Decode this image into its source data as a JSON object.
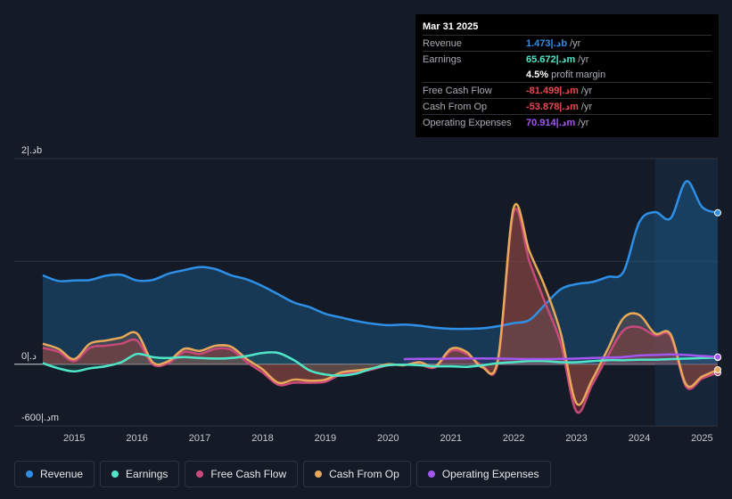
{
  "tooltip": {
    "date": "Mar 31 2025",
    "rows": [
      {
        "label": "Revenue",
        "value": "1.473|.دb",
        "unit": "/yr",
        "color": "#2e8fe6"
      },
      {
        "label": "Earnings",
        "value": "65.672|.دm",
        "unit": "/yr",
        "color": "#4fe6c7"
      },
      {
        "label": "",
        "value": "4.5%",
        "unit": "profit margin",
        "color": "#ffffff"
      },
      {
        "label": "Free Cash Flow",
        "value": "-81.499|.دm",
        "unit": "/yr",
        "color": "#e8484f"
      },
      {
        "label": "Cash From Op",
        "value": "-53.878|.دm",
        "unit": "/yr",
        "color": "#e8484f"
      },
      {
        "label": "Operating Expenses",
        "value": "70.914|.دm",
        "unit": "/yr",
        "color": "#a357f0"
      }
    ]
  },
  "legend": [
    {
      "label": "Revenue",
      "color": "#2e8fe6"
    },
    {
      "label": "Earnings",
      "color": "#4fe6c7"
    },
    {
      "label": "Free Cash Flow",
      "color": "#c94a7a"
    },
    {
      "label": "Cash From Op",
      "color": "#e8a85a"
    },
    {
      "label": "Operating Expenses",
      "color": "#a357f0"
    }
  ],
  "chart_data": {
    "type": "area",
    "ylim": [
      -600,
      2000
    ],
    "y_tick_labels": [
      {
        "value": 2000,
        "label": "2|.دb"
      },
      {
        "value": 0,
        "label": "0|.د"
      },
      {
        "value": -600,
        "label": "-600|.دm"
      }
    ],
    "x_ticks": [
      2015,
      2016,
      2017,
      2018,
      2019,
      2020,
      2021,
      2022,
      2023,
      2024,
      2025
    ],
    "xlim": [
      2014.5,
      2025.25
    ],
    "highlight_start": 2024.25,
    "series": [
      {
        "name": "Revenue",
        "color": "#2e8fe6",
        "x": [
          2014.5,
          2014.75,
          2015.0,
          2015.25,
          2015.5,
          2015.75,
          2016.0,
          2016.25,
          2016.5,
          2016.75,
          2017.0,
          2017.25,
          2017.5,
          2017.75,
          2018.0,
          2018.25,
          2018.5,
          2018.75,
          2019.0,
          2019.25,
          2019.5,
          2019.75,
          2020.0,
          2020.25,
          2020.5,
          2020.75,
          2021.0,
          2021.25,
          2021.5,
          2021.75,
          2022.0,
          2022.25,
          2022.5,
          2022.75,
          2023.0,
          2023.25,
          2023.5,
          2023.75,
          2024.0,
          2024.25,
          2024.5,
          2024.75,
          2025.0,
          2025.25
        ],
        "values": [
          865,
          810,
          815,
          820,
          860,
          870,
          815,
          820,
          880,
          915,
          945,
          925,
          865,
          825,
          760,
          680,
          600,
          555,
          490,
          455,
          420,
          395,
          380,
          385,
          375,
          355,
          345,
          345,
          350,
          370,
          400,
          430,
          580,
          730,
          780,
          800,
          850,
          900,
          1380,
          1480,
          1420,
          1780,
          1530,
          1473
        ]
      },
      {
        "name": "Earnings",
        "color": "#4fe6c7",
        "x": [
          2014.5,
          2014.75,
          2015.0,
          2015.25,
          2015.5,
          2015.75,
          2016.0,
          2016.25,
          2016.5,
          2016.75,
          2017.0,
          2017.25,
          2017.5,
          2017.75,
          2018.0,
          2018.25,
          2018.5,
          2018.75,
          2019.0,
          2019.25,
          2019.5,
          2019.75,
          2020.0,
          2020.25,
          2020.5,
          2020.75,
          2021.0,
          2021.25,
          2021.5,
          2021.75,
          2022.0,
          2022.25,
          2022.5,
          2022.75,
          2023.0,
          2023.25,
          2023.5,
          2023.75,
          2024.0,
          2024.25,
          2024.5,
          2024.75,
          2025.0,
          2025.25
        ],
        "values": [
          10,
          -40,
          -70,
          -40,
          -20,
          20,
          100,
          70,
          60,
          70,
          60,
          55,
          60,
          80,
          110,
          110,
          40,
          -60,
          -100,
          -110,
          -90,
          -40,
          -10,
          -5,
          -10,
          -20,
          -20,
          -25,
          -10,
          10,
          20,
          30,
          30,
          20,
          20,
          30,
          40,
          40,
          45,
          45,
          50,
          55,
          60,
          65.672
        ]
      },
      {
        "name": "Free Cash Flow",
        "color": "#c94a7a",
        "x": [
          2014.5,
          2014.75,
          2015.0,
          2015.25,
          2015.5,
          2015.75,
          2016.0,
          2016.25,
          2016.5,
          2016.75,
          2017.0,
          2017.25,
          2017.5,
          2017.75,
          2018.0,
          2018.25,
          2018.5,
          2018.75,
          2019.0,
          2019.25,
          2019.5,
          2019.75,
          2020.0,
          2020.25,
          2020.5,
          2020.75,
          2021.0,
          2021.25,
          2021.5,
          2021.75,
          2022.0,
          2022.25,
          2022.5,
          2022.75,
          2023.0,
          2023.25,
          2023.5,
          2023.75,
          2024.0,
          2024.25,
          2024.5,
          2024.75,
          2025.0,
          2025.25
        ],
        "values": [
          160,
          120,
          30,
          160,
          180,
          200,
          230,
          0,
          10,
          120,
          100,
          150,
          140,
          20,
          -80,
          -200,
          -180,
          -180,
          -170,
          -100,
          -80,
          -50,
          -10,
          -5,
          -5,
          -30,
          130,
          100,
          -10,
          20,
          1480,
          1000,
          600,
          200,
          -460,
          -200,
          80,
          330,
          360,
          280,
          270,
          -220,
          -140,
          -81.499
        ]
      },
      {
        "name": "Cash From Op",
        "color": "#e8a85a",
        "x": [
          2014.5,
          2014.75,
          2015.0,
          2015.25,
          2015.5,
          2015.75,
          2016.0,
          2016.25,
          2016.5,
          2016.75,
          2017.0,
          2017.25,
          2017.5,
          2017.75,
          2018.0,
          2018.25,
          2018.5,
          2018.75,
          2019.0,
          2019.25,
          2019.5,
          2019.75,
          2020.0,
          2020.25,
          2020.5,
          2020.75,
          2021.0,
          2021.25,
          2021.5,
          2021.75,
          2022.0,
          2022.25,
          2022.5,
          2022.75,
          2023.0,
          2023.25,
          2023.5,
          2023.75,
          2024.0,
          2024.25,
          2024.5,
          2024.75,
          2025.0,
          2025.25
        ],
        "values": [
          200,
          150,
          50,
          200,
          230,
          260,
          300,
          20,
          30,
          150,
          130,
          180,
          170,
          50,
          -50,
          -180,
          -150,
          -160,
          -150,
          -80,
          -60,
          -40,
          0,
          -10,
          20,
          -20,
          150,
          120,
          -30,
          50,
          1520,
          1100,
          750,
          300,
          -380,
          -150,
          150,
          450,
          480,
          300,
          290,
          -200,
          -120,
          -53.878
        ]
      },
      {
        "name": "Operating Expenses",
        "color": "#a357f0",
        "x": [
          2020.25,
          2020.5,
          2020.75,
          2021.0,
          2021.25,
          2021.5,
          2021.75,
          2022.0,
          2022.25,
          2022.5,
          2022.75,
          2023.0,
          2023.25,
          2023.5,
          2023.75,
          2024.0,
          2024.25,
          2024.5,
          2024.75,
          2025.0,
          2025.25
        ],
        "values": [
          50,
          52,
          53,
          55,
          56,
          57,
          55,
          52,
          50,
          50,
          52,
          55,
          60,
          65,
          70,
          85,
          90,
          95,
          90,
          80,
          70.914
        ]
      }
    ]
  }
}
